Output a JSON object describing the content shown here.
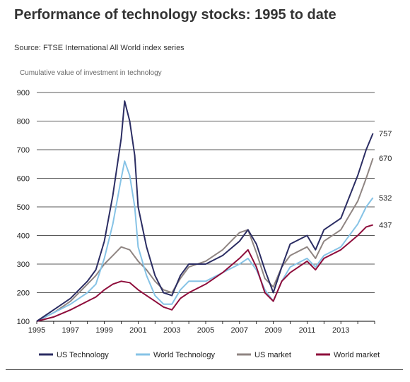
{
  "header": {
    "title": "Performance of technology stocks: 1995 to date",
    "source": "Source: FTSE International All World index series"
  },
  "colors": {
    "us_technology": "#2b2d63",
    "world_technology": "#86c3e6",
    "us_market": "#8f8582",
    "world_market": "#8e0d3b"
  },
  "chart_data": {
    "type": "line",
    "title": "Performance of technology stocks: 1995 to date",
    "ylabel": "Cumulative value of investment in technology",
    "xlabel": "",
    "ylim": [
      100,
      900
    ],
    "xlim": [
      1995,
      2015
    ],
    "yticks": [
      "100",
      "200",
      "300",
      "400",
      "500",
      "600",
      "700",
      "800",
      "900"
    ],
    "xticks": [
      "1995",
      "1997",
      "1999",
      "2001",
      "2003",
      "2005",
      "2007",
      "2009",
      "2011",
      "2013"
    ],
    "grid": "horizontal",
    "legend": "bottom",
    "series": [
      {
        "name": "US Technology",
        "end_label": "757",
        "x": [
          1995,
          1996,
          1997,
          1998,
          1998.5,
          1999,
          1999.5,
          2000,
          2000.2,
          2000.5,
          2000.8,
          2001,
          2001.5,
          2002,
          2002.5,
          2003,
          2003.5,
          2004,
          2005,
          2006,
          2007,
          2007.5,
          2008,
          2008.5,
          2009,
          2009.5,
          2010,
          2011,
          2011.5,
          2012,
          2013,
          2014,
          2014.5,
          2014.9
        ],
        "y": [
          100,
          140,
          180,
          240,
          280,
          380,
          540,
          740,
          870,
          800,
          680,
          500,
          360,
          260,
          200,
          190,
          260,
          300,
          300,
          330,
          380,
          420,
          370,
          280,
          200,
          290,
          370,
          400,
          350,
          420,
          460,
          610,
          700,
          757
        ]
      },
      {
        "name": "World Technology",
        "end_label": "532",
        "x": [
          1995,
          1996,
          1997,
          1998,
          1998.5,
          1999,
          1999.5,
          2000,
          2000.2,
          2000.5,
          2000.8,
          2001,
          2001.5,
          2002,
          2002.5,
          2003,
          2003.5,
          2004,
          2005,
          2006,
          2007,
          2007.5,
          2008,
          2008.5,
          2009,
          2009.5,
          2010,
          2011,
          2011.5,
          2012,
          2013,
          2014,
          2014.5,
          2014.9
        ],
        "y": [
          100,
          130,
          160,
          200,
          230,
          320,
          440,
          600,
          660,
          610,
          500,
          360,
          260,
          190,
          160,
          160,
          210,
          240,
          240,
          270,
          300,
          320,
          280,
          210,
          170,
          240,
          290,
          320,
          290,
          330,
          360,
          440,
          500,
          532
        ]
      },
      {
        "name": "US market",
        "end_label": "670",
        "x": [
          1995,
          1996,
          1997,
          1998,
          1998.5,
          1999,
          1999.5,
          2000,
          2000.5,
          2001,
          2001.5,
          2002,
          2002.5,
          2003,
          2003.5,
          2004,
          2005,
          2006,
          2007,
          2007.5,
          2008,
          2008.5,
          2009,
          2009.5,
          2010,
          2011,
          2011.5,
          2012,
          2013,
          2014,
          2014.5,
          2014.9
        ],
        "y": [
          100,
          130,
          170,
          230,
          260,
          300,
          330,
          360,
          350,
          310,
          280,
          240,
          210,
          200,
          250,
          290,
          310,
          350,
          410,
          420,
          340,
          250,
          220,
          290,
          330,
          360,
          320,
          380,
          420,
          520,
          600,
          670
        ]
      },
      {
        "name": "World market",
        "end_label": "437",
        "x": [
          1995,
          1996,
          1997,
          1998,
          1998.5,
          1999,
          1999.5,
          2000,
          2000.5,
          2001,
          2001.5,
          2002,
          2002.5,
          2003,
          2003.5,
          2004,
          2005,
          2006,
          2007,
          2007.5,
          2008,
          2008.5,
          2009,
          2009.5,
          2010,
          2011,
          2011.5,
          2012,
          2013,
          2014,
          2014.5,
          2014.9
        ],
        "y": [
          100,
          115,
          140,
          170,
          185,
          210,
          230,
          240,
          235,
          210,
          190,
          170,
          150,
          140,
          180,
          200,
          230,
          270,
          320,
          350,
          290,
          200,
          170,
          240,
          270,
          310,
          280,
          320,
          350,
          400,
          430,
          437
        ]
      }
    ]
  }
}
